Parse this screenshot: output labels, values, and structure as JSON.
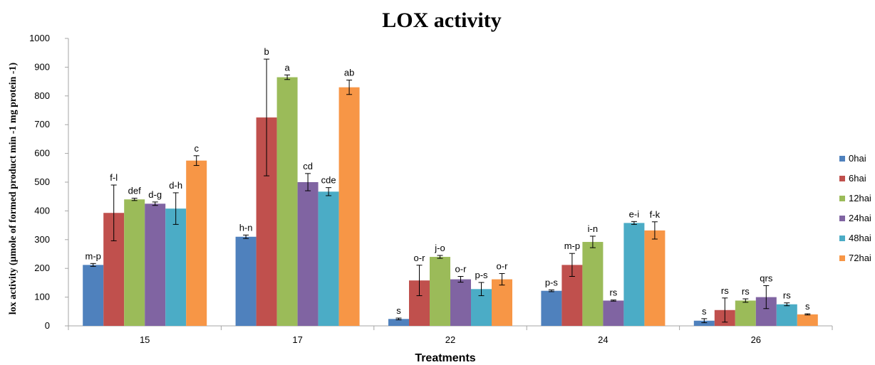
{
  "chart_data": {
    "type": "bar",
    "title": "LOX activity",
    "xlabel": "Treatments",
    "ylabel": "lox activity  (µmole of formed product  min -1 mg protein -1)",
    "ylim": [
      0,
      1000
    ],
    "yticks": [
      0,
      100,
      200,
      300,
      400,
      500,
      600,
      700,
      800,
      900,
      1000
    ],
    "categories": [
      "15",
      "17",
      "22",
      "24",
      "26"
    ],
    "legend_position": "right",
    "series": [
      {
        "name": "0hai",
        "color": "#4f81bd",
        "values": [
          212,
          310,
          24,
          122,
          18
        ],
        "errors": [
          5,
          6,
          3,
          3,
          7
        ],
        "labels": [
          "m-p",
          "h-n",
          "s",
          "p-s",
          "s"
        ]
      },
      {
        "name": "6hai",
        "color": "#c0504d",
        "values": [
          393,
          725,
          158,
          212,
          55
        ],
        "errors": [
          97,
          203,
          53,
          40,
          42
        ],
        "labels": [
          "f-l",
          "b",
          "o-r",
          "m-p",
          "rs"
        ]
      },
      {
        "name": "12hai",
        "color": "#9bbb59",
        "values": [
          440,
          865,
          240,
          292,
          88
        ],
        "errors": [
          4,
          8,
          5,
          20,
          6
        ],
        "labels": [
          "def",
          "a",
          "j-o",
          "i-n",
          "rs"
        ]
      },
      {
        "name": "24hai",
        "color": "#8064a2",
        "values": [
          425,
          500,
          162,
          88,
          100
        ],
        "errors": [
          6,
          30,
          10,
          2,
          40
        ],
        "labels": [
          "d-g",
          "cd",
          "o-r",
          "rs",
          "qrs"
        ]
      },
      {
        "name": "48hai",
        "color": "#4bacc6",
        "values": [
          408,
          467,
          128,
          358,
          75
        ],
        "errors": [
          55,
          14,
          23,
          5,
          5
        ],
        "labels": [
          "d-h",
          "cde",
          "p-s",
          "e-i",
          "rs"
        ]
      },
      {
        "name": "72hai",
        "color": "#f79646",
        "values": [
          575,
          830,
          162,
          332,
          40
        ],
        "errors": [
          17,
          25,
          20,
          30,
          2
        ],
        "labels": [
          "c",
          "ab",
          "o-r",
          "f-k",
          "s"
        ]
      }
    ]
  }
}
